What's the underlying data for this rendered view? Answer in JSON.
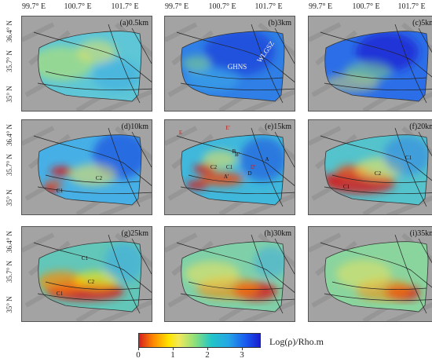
{
  "top_axis_labels": [
    "99.7° E",
    "100.7° E",
    "101.7° E"
  ],
  "lat_labels": [
    "36.4° N",
    "35.7° N",
    "35° N"
  ],
  "panels": [
    {
      "label": "(a)0.5km",
      "marks": []
    },
    {
      "label": "(b)3km",
      "marks": [
        {
          "text": "WLGSZ",
          "style": "white",
          "rot": -55
        },
        {
          "text": "GHNS",
          "style": "white",
          "rot": 0
        }
      ]
    },
    {
      "label": "(c)5km",
      "marks": []
    },
    {
      "label": "(d)10km",
      "marks": [
        {
          "text": "C2"
        },
        {
          "text": "C1"
        }
      ]
    },
    {
      "label": "(e)15km",
      "marks": [
        {
          "text": "C2"
        },
        {
          "text": "C1"
        },
        {
          "text": "B"
        },
        {
          "text": "B'"
        },
        {
          "text": "A"
        },
        {
          "text": "A'"
        },
        {
          "text": "D"
        },
        {
          "text": "D'",
          "style": "red"
        },
        {
          "text": "E",
          "style": "red"
        },
        {
          "text": "E'",
          "style": "red"
        }
      ]
    },
    {
      "label": "(f)20km",
      "marks": [
        {
          "text": "C1"
        },
        {
          "text": "C2"
        },
        {
          "text": "C1"
        }
      ]
    },
    {
      "label": "(g)25km",
      "marks": [
        {
          "text": "C1"
        },
        {
          "text": "C2"
        },
        {
          "text": "C1"
        }
      ]
    },
    {
      "label": "(h)30km",
      "marks": []
    },
    {
      "label": "(i)35km",
      "marks": []
    }
  ],
  "colorbar": {
    "ticks": [
      "0",
      "1",
      "2",
      "3"
    ],
    "tick_values": [
      0,
      1,
      2,
      3
    ],
    "range": [
      0,
      3.5
    ],
    "unit_label": "Log(ρ)/Rho.m",
    "colors": [
      "#d41f1f",
      "#ff8a00",
      "#ffe600",
      "#8ee07a",
      "#21c5c8",
      "#25a6e6",
      "#1a5bf0",
      "#1a1fd0"
    ]
  }
}
